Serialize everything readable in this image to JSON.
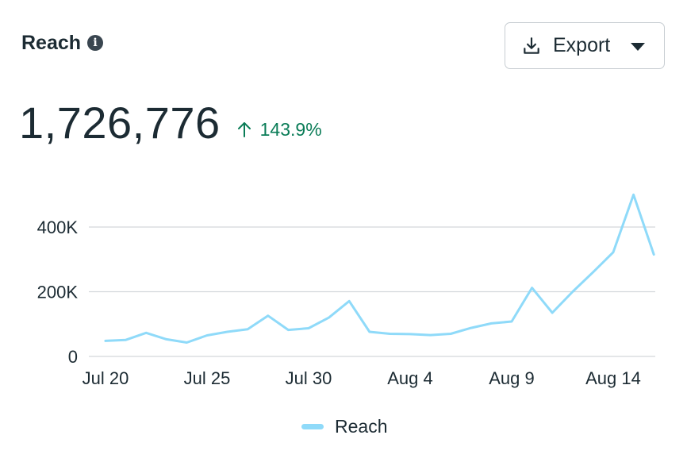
{
  "header": {
    "title": "Reach",
    "info_icon": "info-icon"
  },
  "export": {
    "label": "Export",
    "icon": "download-icon",
    "caret_icon": "caret-down-icon"
  },
  "metric": {
    "value": "1,726,776",
    "delta": "143.9%",
    "delta_icon": "arrow-up-icon",
    "delta_color": "#0a7c57"
  },
  "colors": {
    "line": "#8fdaf9",
    "grid": "#d3d7db",
    "text": "#1c2b33"
  },
  "chart_data": {
    "type": "line",
    "title": "",
    "xlabel": "",
    "ylabel": "",
    "ylim": [
      0,
      500000
    ],
    "y_ticks": [
      0,
      200000,
      400000
    ],
    "y_tick_labels": [
      "0",
      "200K",
      "400K"
    ],
    "x_tick_labels": [
      "Jul 20",
      "Jul 25",
      "Jul 30",
      "Aug 4",
      "Aug 9",
      "Aug 14"
    ],
    "x_tick_indices": [
      0,
      5,
      10,
      15,
      20,
      25
    ],
    "categories": [
      "Jul 20",
      "Jul 21",
      "Jul 22",
      "Jul 23",
      "Jul 24",
      "Jul 25",
      "Jul 26",
      "Jul 27",
      "Jul 28",
      "Jul 29",
      "Jul 30",
      "Jul 31",
      "Aug 1",
      "Aug 2",
      "Aug 3",
      "Aug 4",
      "Aug 5",
      "Aug 6",
      "Aug 7",
      "Aug 8",
      "Aug 9",
      "Aug 10",
      "Aug 11",
      "Aug 12",
      "Aug 13",
      "Aug 14",
      "Aug 15",
      "Aug 16"
    ],
    "grid": true,
    "legend": "bottom-center",
    "series": [
      {
        "name": "Reach",
        "values": [
          48000,
          51000,
          73000,
          53000,
          43000,
          65000,
          76000,
          84000,
          126000,
          82000,
          87000,
          120000,
          171000,
          76000,
          70000,
          69000,
          66000,
          70000,
          88000,
          102000,
          108000,
          212000,
          135000,
          200000,
          260000,
          322000,
          500000,
          315000
        ]
      }
    ]
  }
}
